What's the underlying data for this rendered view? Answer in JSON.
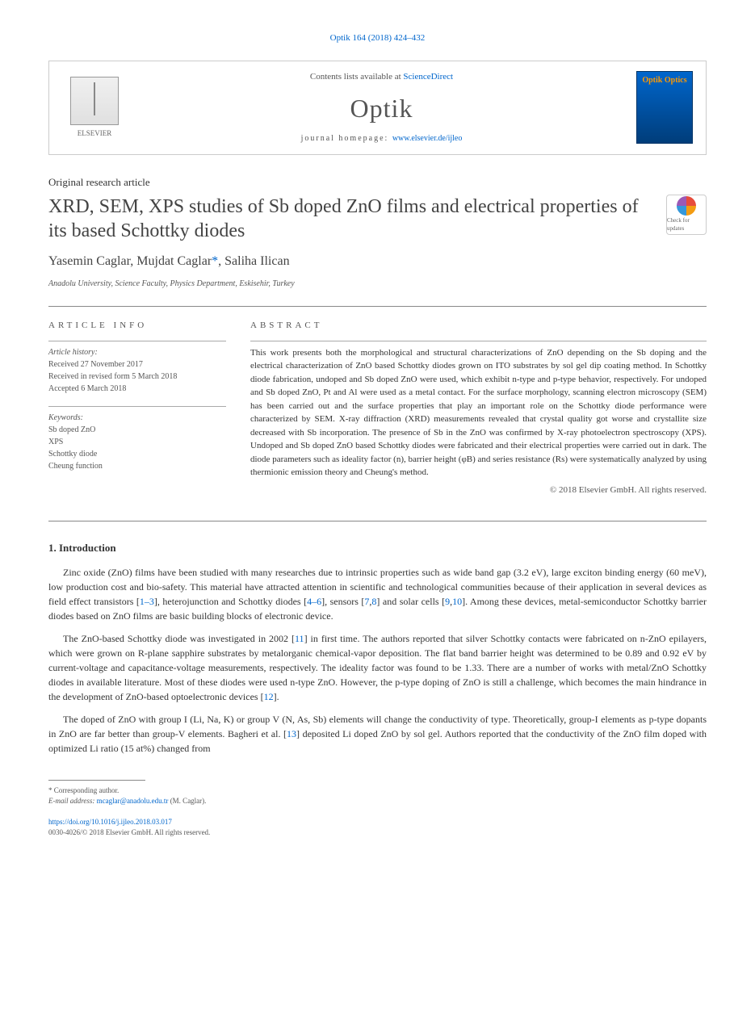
{
  "header": {
    "citation": "Optik 164 (2018) 424–432",
    "contents_prefix": "Contents lists available at ",
    "contents_link": "ScienceDirect",
    "journal_name": "Optik",
    "homepage_prefix": "journal homepage: ",
    "homepage_url": "www.elsevier.de/ijleo",
    "elsevier_label": "ELSEVIER",
    "cover_text": "Optik Optics"
  },
  "article": {
    "type": "Original research article",
    "title": "XRD, SEM, XPS studies of Sb doped ZnO films and electrical properties of its based Schottky diodes",
    "authors": "Yasemin Caglar, Mujdat Caglar",
    "corr_mark": "*",
    "authors_rest": ", Saliha Ilican",
    "affiliation": "Anadolu University, Science Faculty, Physics Department, Eskisehir, Turkey",
    "crossmark_text": "Check for updates"
  },
  "info": {
    "heading": "ARTICLE INFO",
    "history_label": "Article history:",
    "received": "Received 27 November 2017",
    "revised": "Received in revised form 5 March 2018",
    "accepted": "Accepted 6 March 2018",
    "keywords_label": "Keywords:",
    "keywords": [
      "Sb doped ZnO",
      "XPS",
      "Schottky diode",
      "Cheung function"
    ]
  },
  "abstract": {
    "heading": "ABSTRACT",
    "text": "This work presents both the morphological and structural characterizations of ZnO depending on the Sb doping and the electrical characterization of ZnO based Schottky diodes grown on ITO substrates by sol gel dip coating method. In Schottky diode fabrication, undoped and Sb doped ZnO were used, which exhibit n-type and p-type behavior, respectively. For undoped and Sb doped ZnO, Pt and Al were used as a metal contact. For the surface morphology, scanning electron microscopy (SEM) has been carried out and the surface properties that play an important role on the Schottky diode performance were characterized by SEM. X-ray diffraction (XRD) measurements revealed that crystal quality got worse and crystallite size decreased with Sb incorporation. The presence of Sb in the ZnO was confirmed by X-ray photoelectron spectroscopy (XPS). Undoped and Sb doped ZnO based Schottky diodes were fabricated and their electrical properties were carried out in dark. The diode parameters such as ideality factor (n), barrier height (φB) and series resistance (Rs) were systematically analyzed by using thermionic emission theory and Cheung's method.",
    "copyright": "© 2018 Elsevier GmbH. All rights reserved."
  },
  "body": {
    "heading": "1. Introduction",
    "p1_a": "Zinc oxide (ZnO) films have been studied with many researches due to intrinsic properties such as wide band gap (3.2 eV), large exciton binding energy (60 meV), low production cost and bio-safety. This material have attracted attention in scientific and technological communities because of their application in several devices as field effect transistors [",
    "ref1": "1–3",
    "p1_b": "], heterojunction and Schottky diodes [",
    "ref2": "4–6",
    "p1_c": "], sensors [",
    "ref3": "7",
    "p1_d": ",",
    "ref4": "8",
    "p1_e": "] and solar cells [",
    "ref5": "9",
    "p1_f": ",",
    "ref6": "10",
    "p1_g": "]. Among these devices, metal-semiconductor Schottky barrier diodes based on ZnO films are basic building blocks of electronic device.",
    "p2_a": "The ZnO-based Schottky diode was investigated in 2002 [",
    "ref7": "11",
    "p2_b": "] in first time. The authors reported that silver Schottky contacts were fabricated on n-ZnO epilayers, which were grown on R-plane sapphire substrates by metalorganic chemical-vapor deposition. The flat band barrier height was determined to be 0.89 and 0.92 eV by current-voltage and capacitance-voltage measurements, respectively. The ideality factor was found to be 1.33. There are a number of works with metal/ZnO Schottky diodes in available literature. Most of these diodes were used n-type ZnO. However, the p-type doping of ZnO is still a challenge, which becomes the main hindrance in the development of ZnO-based optoelectronic devices [",
    "ref8": "12",
    "p2_c": "].",
    "p3_a": "The doped of ZnO with group I (Li, Na, K) or group V (N, As, Sb) elements will change the conductivity of type. Theoretically, group-I elements as p-type dopants in ZnO are far better than group-V elements. Bagheri et al. [",
    "ref9": "13",
    "p3_b": "] deposited Li doped ZnO by sol gel. Authors reported that the conductivity of the ZnO film doped with optimized Li ratio (15 at%) changed from"
  },
  "footer": {
    "corr_label": "* Corresponding author.",
    "email_label": "E-mail address: ",
    "email": "mcaglar@anadolu.edu.tr",
    "email_suffix": " (M. Caglar).",
    "doi": "https://doi.org/10.1016/j.ijleo.2018.03.017",
    "issn": "0030-4026/© 2018 Elsevier GmbH. All rights reserved."
  },
  "colors": {
    "link": "#0066cc",
    "text": "#333333",
    "muted": "#555555",
    "rule": "#888888"
  }
}
